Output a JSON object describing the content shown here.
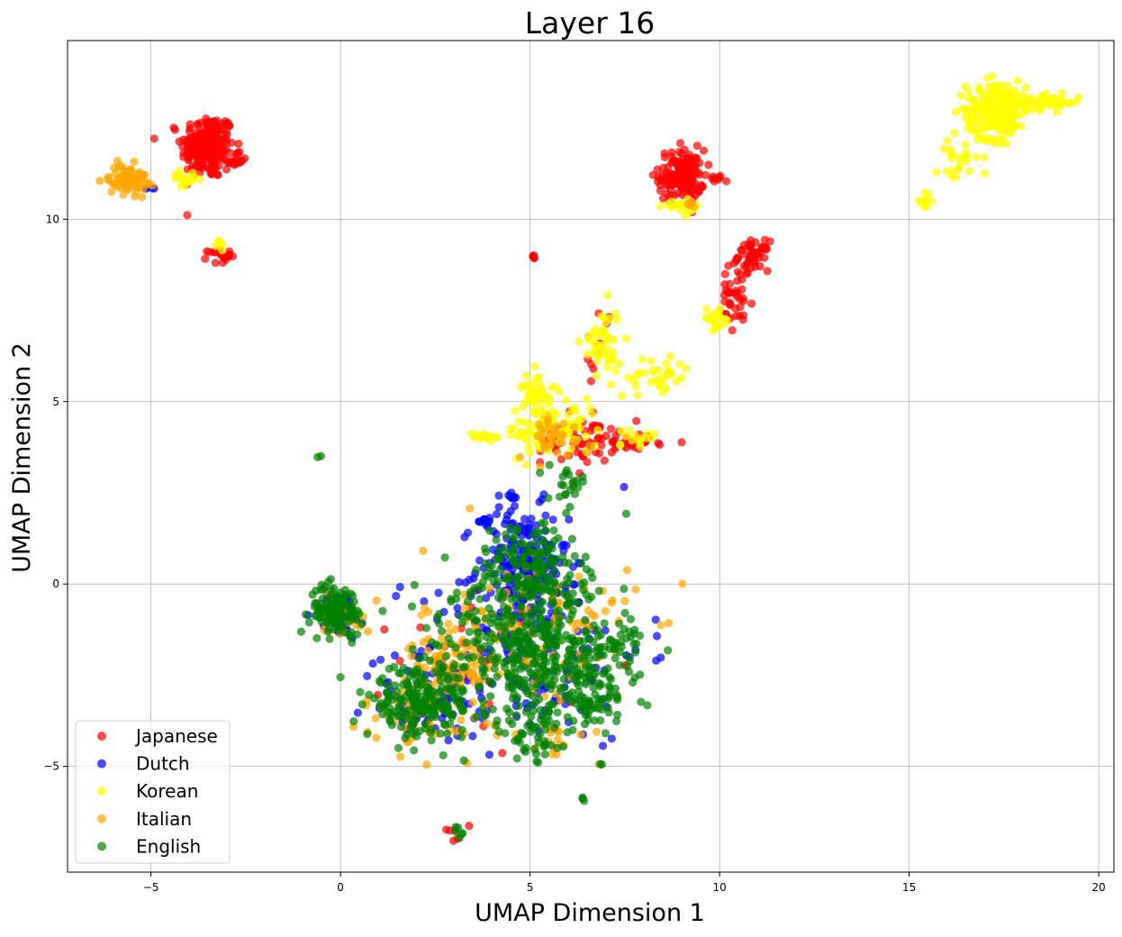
{
  "chart_data": {
    "type": "scatter",
    "title": "Layer 16",
    "xlabel": "UMAP Dimension 1",
    "ylabel": "UMAP Dimension 2",
    "xlim": [
      -7.2,
      20.4
    ],
    "ylim": [
      -7.9,
      14.9
    ],
    "xticks": [
      -5,
      0,
      5,
      10,
      15,
      20
    ],
    "yticks": [
      -5,
      0,
      5,
      10
    ],
    "grid": true,
    "legend_position": "lower-left",
    "series": [
      {
        "name": "Japanese",
        "color": "#ff0000",
        "clusters": [
          {
            "cx": -3.5,
            "cy": 12.0,
            "sx": 0.35,
            "sy": 0.45,
            "n": 220
          },
          {
            "cx": -2.8,
            "cy": 11.6,
            "sx": 0.15,
            "sy": 0.1,
            "n": 15
          },
          {
            "cx": -3.2,
            "cy": 9.0,
            "sx": 0.15,
            "sy": 0.1,
            "n": 20
          },
          {
            "cx": 9.0,
            "cy": 11.2,
            "sx": 0.3,
            "sy": 0.35,
            "n": 150
          },
          {
            "cx": 9.9,
            "cy": 11.1,
            "sx": 0.1,
            "sy": 0.05,
            "n": 8
          },
          {
            "cx": 10.9,
            "cy": 9.0,
            "sx": 0.2,
            "sy": 0.2,
            "n": 50
          },
          {
            "cx": 10.4,
            "cy": 7.8,
            "sx": 0.25,
            "sy": 0.5,
            "n": 40
          },
          {
            "cx": 5.1,
            "cy": 8.95,
            "sx": 0.06,
            "sy": 0.05,
            "n": 5
          },
          {
            "cx": 6.3,
            "cy": 4.0,
            "sx": 0.5,
            "sy": 0.35,
            "n": 70
          },
          {
            "cx": 7.8,
            "cy": 3.9,
            "sx": 0.4,
            "sy": 0.1,
            "n": 25
          },
          {
            "cx": 6.8,
            "cy": 6.5,
            "sx": 0.2,
            "sy": 0.6,
            "n": 12
          },
          {
            "cx": 4.0,
            "cy": -2.0,
            "sx": 1.2,
            "sy": 1.2,
            "n": 30
          },
          {
            "cx": 3.0,
            "cy": -6.9,
            "sx": 0.1,
            "sy": 0.1,
            "n": 5
          }
        ]
      },
      {
        "name": "Dutch",
        "color": "#0000ff",
        "clusters": [
          {
            "cx": 4.8,
            "cy": 0.5,
            "sx": 0.6,
            "sy": 0.8,
            "n": 180
          },
          {
            "cx": 3.8,
            "cy": 1.75,
            "sx": 0.15,
            "sy": 0.1,
            "n": 10
          },
          {
            "cx": 4.5,
            "cy": 2.4,
            "sx": 0.1,
            "sy": 0.1,
            "n": 8
          },
          {
            "cx": 5.0,
            "cy": -1.8,
            "sx": 1.5,
            "sy": 1.3,
            "n": 150
          },
          {
            "cx": 2.5,
            "cy": -3.2,
            "sx": 0.9,
            "sy": 0.6,
            "n": 60
          },
          {
            "cx": 0.0,
            "cy": -0.8,
            "sx": 0.35,
            "sy": 0.3,
            "n": 25
          },
          {
            "cx": -5.0,
            "cy": 10.9,
            "sx": 0.15,
            "sy": 0.08,
            "n": 4
          }
        ]
      },
      {
        "name": "Korean",
        "color": "#ffff00",
        "clusters": [
          {
            "cx": 17.3,
            "cy": 13.0,
            "sx": 0.4,
            "sy": 0.4,
            "n": 200
          },
          {
            "cx": 18.5,
            "cy": 13.2,
            "sx": 0.5,
            "sy": 0.1,
            "n": 50
          },
          {
            "cx": 16.3,
            "cy": 11.7,
            "sx": 0.3,
            "sy": 0.35,
            "n": 25
          },
          {
            "cx": 15.4,
            "cy": 10.5,
            "sx": 0.1,
            "sy": 0.1,
            "n": 10
          },
          {
            "cx": 9.1,
            "cy": 10.3,
            "sx": 0.3,
            "sy": 0.1,
            "n": 20
          },
          {
            "cx": 9.9,
            "cy": 7.3,
            "sx": 0.2,
            "sy": 0.15,
            "n": 20
          },
          {
            "cx": 8.4,
            "cy": 5.7,
            "sx": 0.4,
            "sy": 0.3,
            "n": 35
          },
          {
            "cx": 6.9,
            "cy": 6.6,
            "sx": 0.25,
            "sy": 0.5,
            "n": 50
          },
          {
            "cx": 5.2,
            "cy": 5.3,
            "sx": 0.2,
            "sy": 0.3,
            "n": 40
          },
          {
            "cx": 5.6,
            "cy": 4.2,
            "sx": 0.6,
            "sy": 0.35,
            "n": 90
          },
          {
            "cx": 3.8,
            "cy": 4.05,
            "sx": 0.25,
            "sy": 0.05,
            "n": 15
          },
          {
            "cx": -4.1,
            "cy": 11.1,
            "sx": 0.15,
            "sy": 0.1,
            "n": 20
          },
          {
            "cx": -3.2,
            "cy": 9.3,
            "sx": 0.06,
            "sy": 0.08,
            "n": 6
          },
          {
            "cx": 7.7,
            "cy": 4.0,
            "sx": 0.3,
            "sy": 0.12,
            "n": 15
          }
        ]
      },
      {
        "name": "Italian",
        "color": "#ffa500",
        "clusters": [
          {
            "cx": -5.6,
            "cy": 11.1,
            "sx": 0.25,
            "sy": 0.2,
            "n": 80
          },
          {
            "cx": 2.8,
            "cy": -2.1,
            "sx": 0.5,
            "sy": 0.35,
            "n": 60
          },
          {
            "cx": 5.0,
            "cy": -1.5,
            "sx": 1.4,
            "sy": 1.3,
            "n": 140
          },
          {
            "cx": 2.2,
            "cy": -3.5,
            "sx": 0.8,
            "sy": 0.5,
            "n": 60
          },
          {
            "cx": 0.1,
            "cy": -0.8,
            "sx": 0.35,
            "sy": 0.3,
            "n": 30
          },
          {
            "cx": 5.6,
            "cy": 4.0,
            "sx": 0.5,
            "sy": 0.3,
            "n": 30
          },
          {
            "cx": 5.5,
            "cy": -4.3,
            "sx": 0.3,
            "sy": 0.3,
            "n": 15
          },
          {
            "cx": 9.2,
            "cy": 10.4,
            "sx": 0.1,
            "sy": 0.05,
            "n": 4
          }
        ]
      },
      {
        "name": "English",
        "color": "#008000",
        "clusters": [
          {
            "cx": -0.1,
            "cy": -0.7,
            "sx": 0.35,
            "sy": 0.35,
            "n": 120
          },
          {
            "cx": 5.0,
            "cy": 0.4,
            "sx": 0.7,
            "sy": 0.7,
            "n": 160
          },
          {
            "cx": 5.3,
            "cy": -2.0,
            "sx": 1.1,
            "sy": 1.0,
            "n": 300
          },
          {
            "cx": 6.7,
            "cy": -2.8,
            "sx": 0.5,
            "sy": 0.6,
            "n": 90
          },
          {
            "cx": 2.1,
            "cy": -3.3,
            "sx": 0.7,
            "sy": 0.45,
            "n": 200
          },
          {
            "cx": 3.5,
            "cy": -1.5,
            "sx": 0.9,
            "sy": 0.8,
            "n": 80
          },
          {
            "cx": 5.2,
            "cy": -4.2,
            "sx": 0.3,
            "sy": 0.4,
            "n": 40
          },
          {
            "cx": 6.0,
            "cy": 2.8,
            "sx": 0.25,
            "sy": 0.2,
            "n": 20
          },
          {
            "cx": -0.55,
            "cy": 3.5,
            "sx": 0.02,
            "sy": 0.02,
            "n": 2
          },
          {
            "cx": 6.4,
            "cy": -5.9,
            "sx": 0.05,
            "sy": 0.05,
            "n": 3
          },
          {
            "cx": 6.9,
            "cy": -4.95,
            "sx": 0.03,
            "sy": 0.03,
            "n": 2
          },
          {
            "cx": 3.1,
            "cy": -6.8,
            "sx": 0.1,
            "sy": 0.08,
            "n": 6
          },
          {
            "cx": 7.3,
            "cy": -1.6,
            "sx": 0.4,
            "sy": 0.25,
            "n": 20
          }
        ]
      }
    ]
  }
}
